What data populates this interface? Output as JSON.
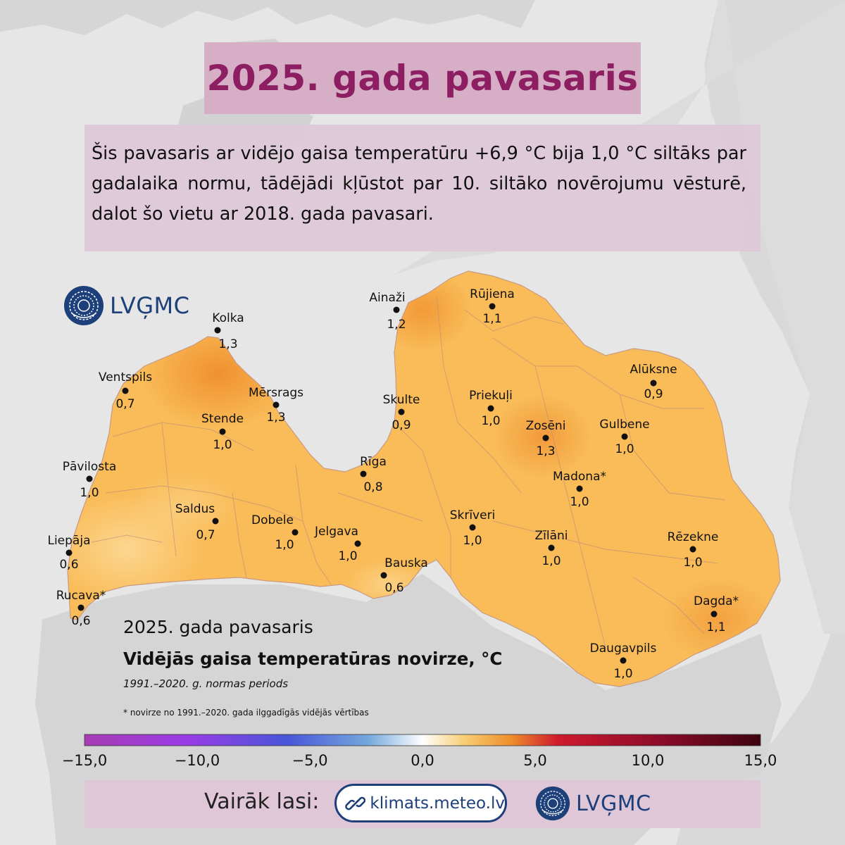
{
  "title": "2025. gada pavasaris",
  "description": "Šis pavasaris ar vidējo gaisa temperatūru +6,9 °C bija 1,0 °C siltāks par gadalaika normu, tādējādi kļūstot par 10. siltāko novērojumu vēsturē, dalot šo vietu ar 2018. gada pavasari.",
  "logo_text": "LVĢMC",
  "map": {
    "subtitle": "2025. gada pavasaris",
    "heading": "Vidējās gaisa temperatūras novirze, °C",
    "period": "1991.–2020. g. normas periods",
    "footnote": "* novirze no 1991.–2020. gada ilggadīgās vidējās vērtības",
    "stations": [
      {
        "name": "Ainaži",
        "value": "1,2"
      },
      {
        "name": "Rūjiena",
        "value": "1,1"
      },
      {
        "name": "Kolka",
        "value": "1,3"
      },
      {
        "name": "Ventspils",
        "value": "0,7"
      },
      {
        "name": "Mērsrags",
        "value": "1,3"
      },
      {
        "name": "Stende",
        "value": "1,0"
      },
      {
        "name": "Skulte",
        "value": "0,9"
      },
      {
        "name": "Priekuļi",
        "value": "1,0"
      },
      {
        "name": "Alūksne",
        "value": "0,9"
      },
      {
        "name": "Zosēni",
        "value": "1,3"
      },
      {
        "name": "Gulbene",
        "value": "1,0"
      },
      {
        "name": "Pāvilosta",
        "value": "1,0"
      },
      {
        "name": "Rīga",
        "value": "0,8"
      },
      {
        "name": "Madona*",
        "value": "1,0"
      },
      {
        "name": "Saldus",
        "value": "0,7"
      },
      {
        "name": "Dobele",
        "value": "1,0"
      },
      {
        "name": "Jelgava",
        "value": "1,0"
      },
      {
        "name": "Skrīveri",
        "value": "1,0"
      },
      {
        "name": "Zīlāni",
        "value": "1,0"
      },
      {
        "name": "Rēzekne",
        "value": "1,0"
      },
      {
        "name": "Liepāja",
        "value": "0,6"
      },
      {
        "name": "Bauska",
        "value": "0,6"
      },
      {
        "name": "Rucava*",
        "value": "0,6"
      },
      {
        "name": "Dagda*",
        "value": "1,1"
      },
      {
        "name": "Daugavpils",
        "value": "1,0"
      }
    ]
  },
  "legend": {
    "ticks": [
      "−15,0",
      "−10,0",
      "−5,0",
      "0,0",
      "5,0",
      "10,0",
      "15,0"
    ],
    "min": -15,
    "max": 15,
    "colors": [
      "#a83cb3",
      "#8d3fe0",
      "#4a55d8",
      "#6ea0d8",
      "#ffffff",
      "#f7c463",
      "#ea8a2a",
      "#c8102e",
      "#8a0c2a",
      "#4a0512"
    ]
  },
  "footer": {
    "label": "Vairāk lasi:",
    "link": "klimats.meteo.lv"
  },
  "colors": {
    "title": "#8c1e61",
    "title_bg": "#d6aec6",
    "map_fill": "#f9bb55",
    "brand": "#1d3f7a"
  },
  "icons": [
    "lvgmc-logo-icon",
    "link-chain-icon"
  ]
}
